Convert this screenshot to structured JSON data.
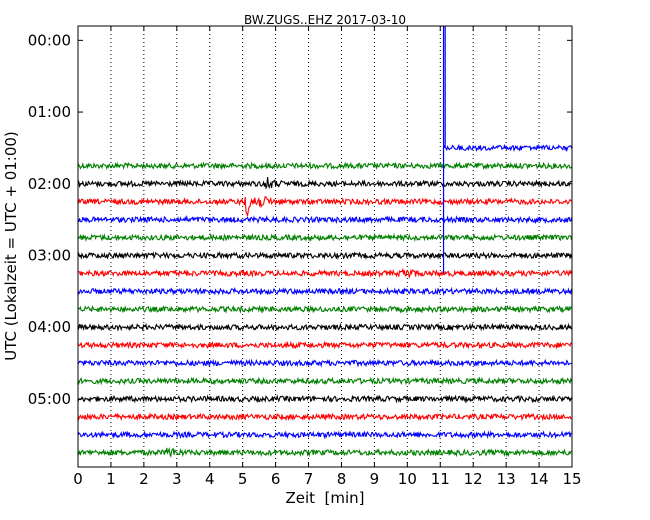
{
  "chart_data": {
    "type": "line",
    "title": "BW.ZUGS..EHZ 2017-03-10",
    "xlabel": "Zeit  [min]",
    "ylabel": "UTC (Lokalzeit = UTC + 01:00)",
    "xlim": [
      0,
      15
    ],
    "x_ticks": [
      "0",
      "1",
      "2",
      "3",
      "4",
      "5",
      "6",
      "7",
      "8",
      "9",
      "10",
      "11",
      "12",
      "13",
      "14",
      "15"
    ],
    "y_ticks": [
      "00:00",
      "01:00",
      "02:00",
      "03:00",
      "04:00",
      "05:00"
    ],
    "y_tick_minutes": [
      0,
      60,
      120,
      180,
      240,
      300
    ],
    "ylim_minutes": [
      -12,
      357
    ],
    "grid": "vertical dotted",
    "trace_colors": [
      "#008000",
      "#000000",
      "#ff0000",
      "#0000ff"
    ],
    "traces": [
      {
        "offset_minutes": 105,
        "color": "#008000"
      },
      {
        "offset_minutes": 120,
        "color": "#000000"
      },
      {
        "offset_minutes": 135,
        "color": "#ff0000"
      },
      {
        "offset_minutes": 150,
        "color": "#0000ff"
      },
      {
        "offset_minutes": 165,
        "color": "#008000"
      },
      {
        "offset_minutes": 180,
        "color": "#000000"
      },
      {
        "offset_minutes": 195,
        "color": "#ff0000"
      },
      {
        "offset_minutes": 210,
        "color": "#0000ff"
      },
      {
        "offset_minutes": 225,
        "color": "#008000"
      },
      {
        "offset_minutes": 240,
        "color": "#000000"
      },
      {
        "offset_minutes": 255,
        "color": "#ff0000"
      },
      {
        "offset_minutes": 270,
        "color": "#0000ff"
      },
      {
        "offset_minutes": 285,
        "color": "#008000"
      },
      {
        "offset_minutes": 300,
        "color": "#000000"
      },
      {
        "offset_minutes": 315,
        "color": "#ff0000"
      },
      {
        "offset_minutes": 330,
        "color": "#0000ff"
      },
      {
        "offset_minutes": 345,
        "color": "#008000"
      }
    ],
    "events": [
      {
        "trace_offset_minutes": 120,
        "x_min": 5.7,
        "amplitude": "small"
      },
      {
        "trace_offset_minutes": 135,
        "x_min": 5.1,
        "amplitude": "large"
      },
      {
        "trace_offset_minutes": 195,
        "x_min": 9.9,
        "amplitude": "small"
      },
      {
        "trace_offset_minutes": 345,
        "x_min": 2.7,
        "amplitude": "small"
      }
    ],
    "spike": {
      "x_min": 11.1,
      "from_minutes": -12,
      "to_minutes": 195,
      "color": "#0000ff"
    },
    "top_blue_trace": {
      "offset_minutes": 90,
      "x_start_min": 11.1,
      "x_end_min": 15,
      "color": "#0000ff"
    }
  }
}
